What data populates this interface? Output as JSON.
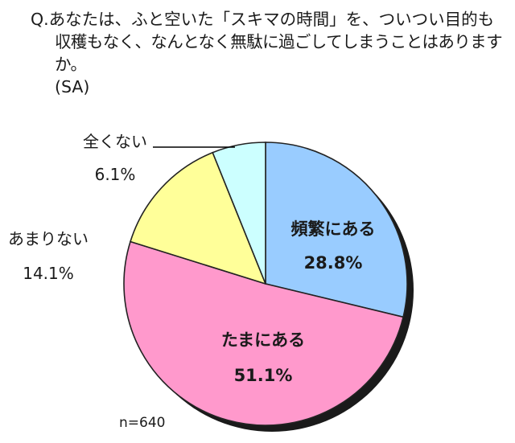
{
  "question": {
    "line1": "Q.あなたは、ふと空いた「スキマの時間」を、ついつい目的も",
    "line2": "収穫もなく、なんとなく無駄に過ごしてしまうことはありますか。",
    "line3": "(SA)"
  },
  "sample_size": "n=640",
  "chart_data": {
    "type": "pie",
    "title": "",
    "slices": [
      {
        "label": "頻繁にある",
        "value": 28.8,
        "value_label": "28.8%",
        "color": "#99CCFF"
      },
      {
        "label": "たまにある",
        "value": 51.1,
        "value_label": "51.1%",
        "color": "#FF99CC"
      },
      {
        "label": "あまりない",
        "value": 14.1,
        "value_label": "14.1%",
        "color": "#FFFF99"
      },
      {
        "label": "全くない",
        "value": 6.1,
        "value_label": "6.1%",
        "color": "#CCFFFF"
      }
    ],
    "start": "12 o'clock",
    "direction": "clockwise",
    "legend": "none (slice labels)"
  }
}
